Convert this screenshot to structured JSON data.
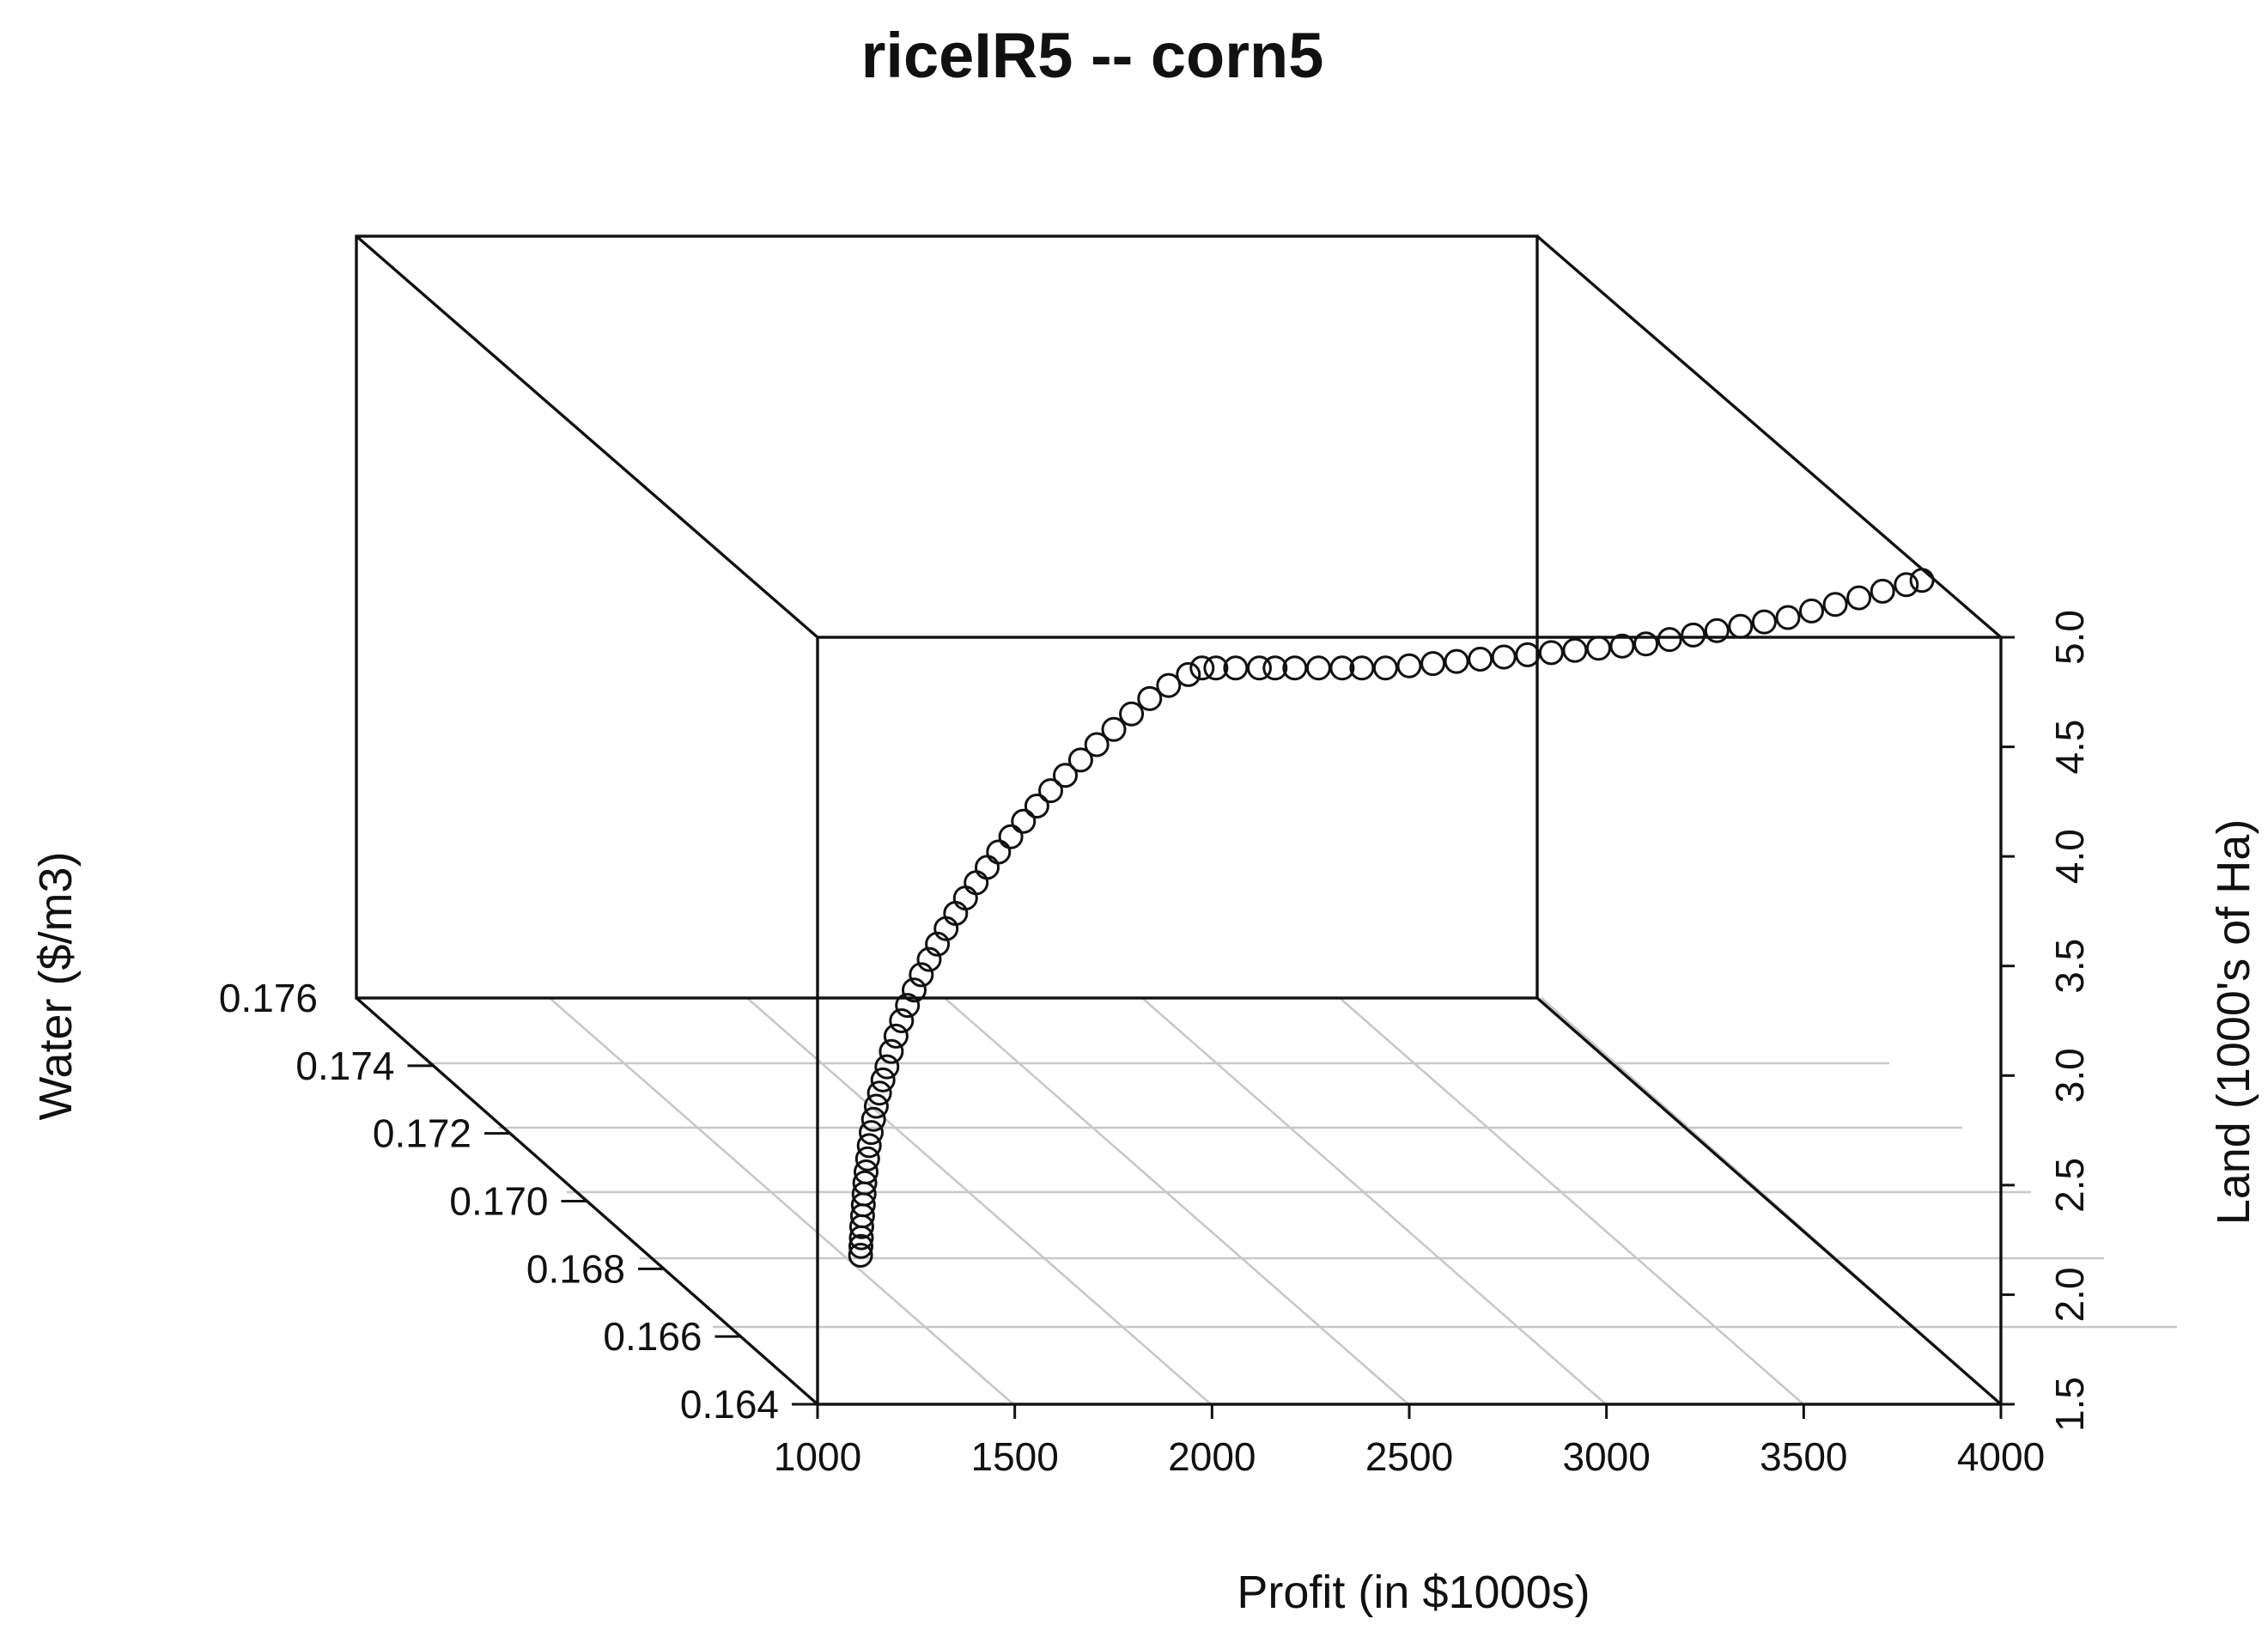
{
  "chart_data": {
    "type": "scatter3d",
    "title": "riceIR5 -- corn5",
    "x_label": "Profit (in $1000s)",
    "y_label": "Water ($/m3)",
    "z_label": "Land (1000's of Ha)",
    "x_ticks": [
      "1000",
      "1500",
      "2000",
      "2500",
      "3000",
      "3500",
      "4000"
    ],
    "y_ticks": [
      "0.164",
      "0.166",
      "0.168",
      "0.170",
      "0.172",
      "0.174",
      "0.176"
    ],
    "z_ticks": [
      "1.5",
      "2.0",
      "2.5",
      "3.0",
      "3.5",
      "4.0",
      "4.5",
      "5.0"
    ],
    "x_range": [
      1000,
      4000
    ],
    "y_range": [
      0.164,
      0.176
    ],
    "z_range": [
      1.5,
      5.0
    ],
    "grid": "floor",
    "marker": "open-circle",
    "series": [
      {
        "points": [
          [
            1109,
            0.164,
            2.18
          ],
          [
            1110,
            0.164,
            2.22
          ],
          [
            1111,
            0.164,
            2.26
          ],
          [
            1112,
            0.164,
            2.31
          ],
          [
            1114,
            0.164,
            2.36
          ],
          [
            1116,
            0.164,
            2.41
          ],
          [
            1118,
            0.164,
            2.46
          ],
          [
            1120,
            0.164,
            2.51
          ],
          [
            1123,
            0.164,
            2.56
          ],
          [
            1127,
            0.164,
            2.62
          ],
          [
            1131,
            0.164,
            2.68
          ],
          [
            1136,
            0.164,
            2.74
          ],
          [
            1142,
            0.164,
            2.8
          ],
          [
            1149,
            0.164,
            2.86
          ],
          [
            1157,
            0.164,
            2.92
          ],
          [
            1166,
            0.164,
            2.98
          ],
          [
            1176,
            0.164,
            3.04
          ],
          [
            1187,
            0.164,
            3.11
          ],
          [
            1199,
            0.164,
            3.18
          ],
          [
            1213,
            0.164,
            3.25
          ],
          [
            1228,
            0.164,
            3.32
          ],
          [
            1245,
            0.164,
            3.39
          ],
          [
            1263,
            0.164,
            3.46
          ],
          [
            1283,
            0.164,
            3.53
          ],
          [
            1304,
            0.164,
            3.6
          ],
          [
            1326,
            0.164,
            3.67
          ],
          [
            1350,
            0.164,
            3.74
          ],
          [
            1375,
            0.164,
            3.81
          ],
          [
            1402,
            0.164,
            3.88
          ],
          [
            1430,
            0.164,
            3.95
          ],
          [
            1459,
            0.164,
            4.02
          ],
          [
            1490,
            0.164,
            4.09
          ],
          [
            1522,
            0.164,
            4.16
          ],
          [
            1556,
            0.164,
            4.23
          ],
          [
            1591,
            0.164,
            4.3
          ],
          [
            1628,
            0.164,
            4.37
          ],
          [
            1667,
            0.164,
            4.44
          ],
          [
            1708,
            0.164,
            4.51
          ],
          [
            1751,
            0.164,
            4.58
          ],
          [
            1796,
            0.164,
            4.65
          ],
          [
            1842,
            0.164,
            4.72
          ],
          [
            1890,
            0.164,
            4.78
          ],
          [
            1940,
            0.164,
            4.83
          ],
          [
            1975,
            0.164,
            4.86
          ],
          [
            2010,
            0.164,
            4.86
          ],
          [
            2060,
            0.164,
            4.86
          ],
          [
            2120,
            0.164,
            4.86
          ],
          [
            2160,
            0.164,
            4.86
          ],
          [
            2210,
            0.164,
            4.86
          ],
          [
            2270,
            0.164,
            4.86
          ],
          [
            2330,
            0.164,
            4.86
          ],
          [
            2380,
            0.164,
            4.86
          ],
          [
            2440,
            0.164,
            4.86
          ],
          [
            2500,
            0.164,
            4.87
          ],
          [
            2560,
            0.164,
            4.88
          ],
          [
            2620,
            0.164,
            4.89
          ],
          [
            2680,
            0.164,
            4.9
          ],
          [
            2740,
            0.164,
            4.91
          ],
          [
            2800,
            0.164,
            4.92
          ],
          [
            2860,
            0.164,
            4.93
          ],
          [
            2920,
            0.164,
            4.94
          ],
          [
            2980,
            0.164,
            4.95
          ],
          [
            3040,
            0.164,
            4.96
          ],
          [
            3100,
            0.164,
            4.97
          ],
          [
            3160,
            0.164,
            4.99
          ],
          [
            3220,
            0.164,
            5.01
          ],
          [
            3280,
            0.164,
            5.03
          ],
          [
            3340,
            0.164,
            5.05
          ],
          [
            3400,
            0.164,
            5.07
          ],
          [
            3460,
            0.164,
            5.09
          ],
          [
            3520,
            0.164,
            5.12
          ],
          [
            3580,
            0.164,
            5.15
          ],
          [
            3640,
            0.164,
            5.18
          ],
          [
            3700,
            0.164,
            5.21
          ],
          [
            3760,
            0.164,
            5.24
          ],
          [
            3800,
            0.164,
            5.26
          ]
        ]
      }
    ]
  }
}
